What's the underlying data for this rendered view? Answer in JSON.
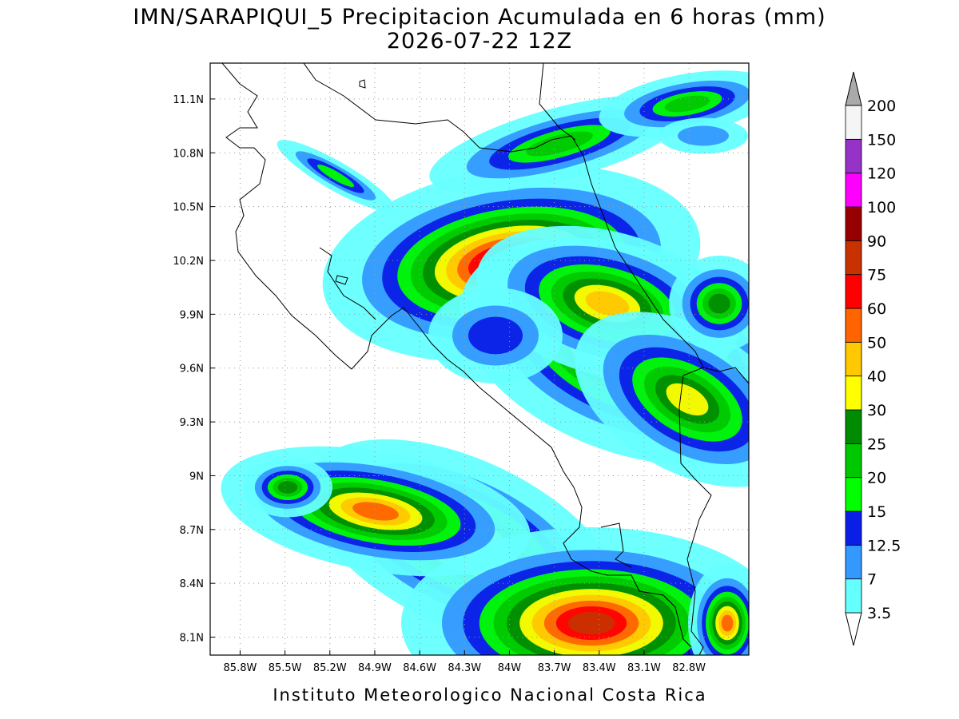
{
  "map": {
    "title": "IMN/SARAPIQUI_5 Precipitacion Acumulada en 6 horas (mm)",
    "subtitle": "2026-07-22 12Z",
    "footer": "Instituto Meteorologico Nacional Costa Rica",
    "lonlim": [
      -86.0,
      -82.4
    ],
    "latlim": [
      8.0,
      11.3
    ],
    "lat_ticks": [
      {
        "value": 11.1,
        "label": "11.1N"
      },
      {
        "value": 10.8,
        "label": "10.8N"
      },
      {
        "value": 10.5,
        "label": "10.5N"
      },
      {
        "value": 10.2,
        "label": "10.2N"
      },
      {
        "value": 9.9,
        "label": "9.9N"
      },
      {
        "value": 9.6,
        "label": "9.6N"
      },
      {
        "value": 9.3,
        "label": "9.3N"
      },
      {
        "value": 9,
        "label": "9N"
      },
      {
        "value": 8.7,
        "label": "8.7N"
      },
      {
        "value": 8.4,
        "label": "8.4N"
      },
      {
        "value": 8.1,
        "label": "8.1N"
      }
    ],
    "lon_ticks": [
      {
        "value": -85.8,
        "label": "85.8W"
      },
      {
        "value": -85.5,
        "label": "85.5W"
      },
      {
        "value": -85.2,
        "label": "85.2W"
      },
      {
        "value": -84.9,
        "label": "84.9W"
      },
      {
        "value": -84.6,
        "label": "84.6W"
      },
      {
        "value": -84.3,
        "label": "84.3W"
      },
      {
        "value": -84,
        "label": "84W"
      },
      {
        "value": -83.7,
        "label": "83.7W"
      },
      {
        "value": -83.4,
        "label": "83.4W"
      },
      {
        "value": -83.1,
        "label": "83.1W"
      },
      {
        "value": -82.8,
        "label": "82.8W"
      }
    ],
    "colorbar": {
      "levels": [
        3.5,
        7,
        12.5,
        15,
        20,
        25,
        30,
        40,
        50,
        60,
        75,
        90,
        100,
        120,
        150,
        200
      ],
      "colors": [
        "#ffffff",
        "#66ffff",
        "#3399ff",
        "#0a1ee6",
        "#00ff00",
        "#00c800",
        "#008c00",
        "#ffff00",
        "#ffc800",
        "#ff6400",
        "#ff0000",
        "#c83200",
        "#960000",
        "#ff00ff",
        "#9632c8",
        "#f5f5f5",
        "#aaaaaa"
      ]
    }
  }
}
